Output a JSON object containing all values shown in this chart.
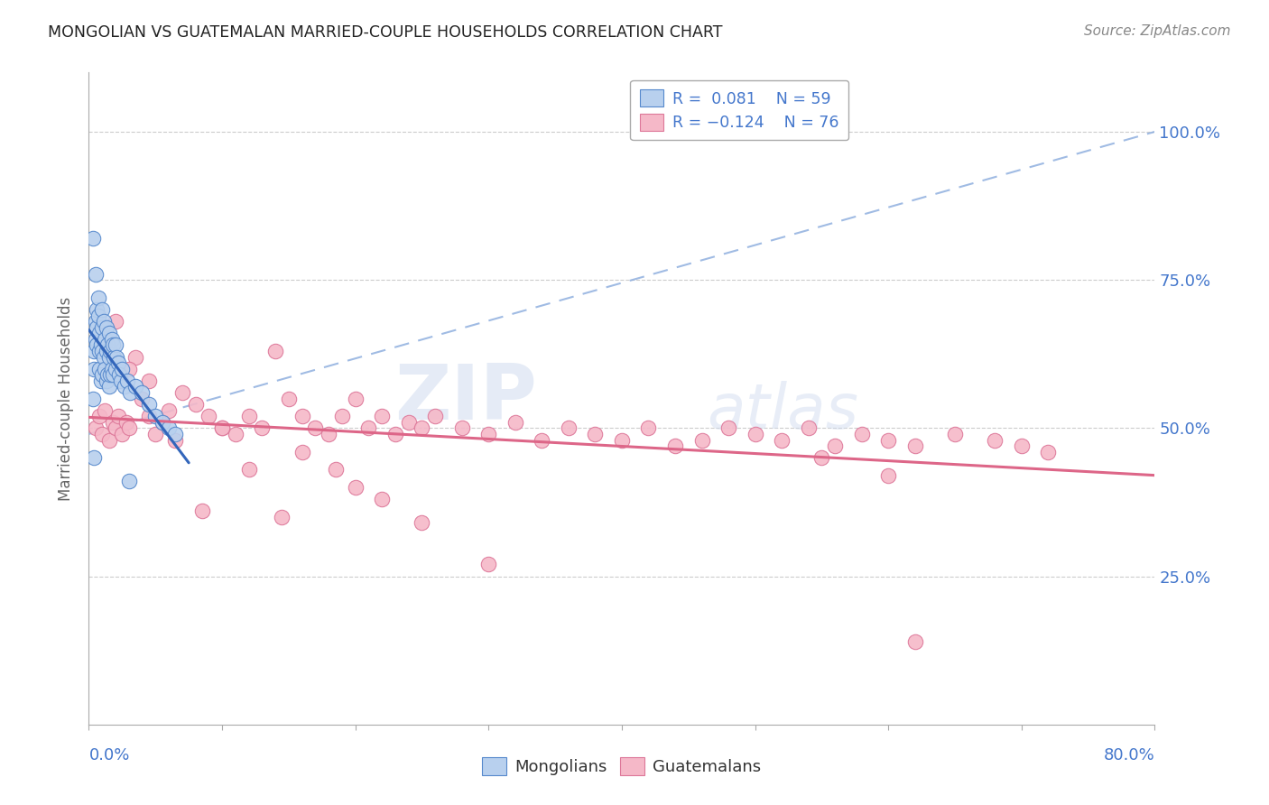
{
  "title": "MONGOLIAN VS GUATEMALAN MARRIED-COUPLE HOUSEHOLDS CORRELATION CHART",
  "source": "Source: ZipAtlas.com",
  "ylabel": "Married-couple Households",
  "xlim": [
    0.0,
    80.0
  ],
  "ylim": [
    0.0,
    110.0
  ],
  "mongolian_color": "#b8d0ee",
  "mongolian_edge_color": "#5588cc",
  "guatemalan_color": "#f5b8c8",
  "guatemalan_edge_color": "#dd7799",
  "mongolian_R": 0.081,
  "mongolian_N": 59,
  "guatemalan_R": -0.124,
  "guatemalan_N": 76,
  "regression_blue_color": "#3366bb",
  "regression_pink_color": "#dd6688",
  "diagonal_color": "#88aadd",
  "watermark_zip": "ZIP",
  "watermark_atlas": "atlas",
  "title_color": "#222222",
  "axis_label_color": "#4477cc",
  "legend_border_color": "#aaaaaa",
  "grid_color": "#cccccc",
  "bottom_spine_color": "#aaaaaa",
  "mongolian_x": [
    0.3,
    0.4,
    0.4,
    0.5,
    0.5,
    0.6,
    0.6,
    0.6,
    0.7,
    0.7,
    0.8,
    0.8,
    0.8,
    0.9,
    0.9,
    1.0,
    1.0,
    1.0,
    1.0,
    1.1,
    1.1,
    1.2,
    1.2,
    1.3,
    1.3,
    1.3,
    1.4,
    1.4,
    1.5,
    1.5,
    1.5,
    1.6,
    1.6,
    1.7,
    1.7,
    1.8,
    1.8,
    1.9,
    2.0,
    2.0,
    2.1,
    2.2,
    2.3,
    2.4,
    2.5,
    2.7,
    2.9,
    3.1,
    3.5,
    4.0,
    4.5,
    5.0,
    5.5,
    6.0,
    0.3,
    0.4,
    3.0,
    0.5,
    6.5
  ],
  "mongolian_y": [
    55,
    60,
    63,
    65,
    68,
    70,
    67,
    64,
    72,
    69,
    66,
    63,
    60,
    64,
    58,
    70,
    67,
    63,
    59,
    68,
    62,
    65,
    60,
    67,
    63,
    58,
    64,
    59,
    66,
    62,
    57,
    63,
    59,
    65,
    60,
    64,
    59,
    62,
    64,
    60,
    62,
    61,
    59,
    58,
    60,
    57,
    58,
    56,
    57,
    56,
    54,
    52,
    51,
    50,
    82,
    45,
    41,
    76,
    49
  ],
  "guatemalan_x": [
    0.5,
    0.8,
    1.0,
    1.2,
    1.5,
    1.8,
    2.0,
    2.2,
    2.5,
    2.8,
    3.0,
    3.5,
    4.0,
    4.5,
    5.0,
    5.5,
    6.0,
    7.0,
    8.0,
    9.0,
    10.0,
    11.0,
    12.0,
    13.0,
    14.0,
    15.0,
    16.0,
    17.0,
    18.0,
    19.0,
    20.0,
    21.0,
    22.0,
    23.0,
    24.0,
    25.0,
    26.0,
    28.0,
    30.0,
    32.0,
    34.0,
    36.0,
    38.0,
    40.0,
    42.0,
    44.0,
    46.0,
    48.0,
    50.0,
    52.0,
    54.0,
    56.0,
    58.0,
    60.0,
    62.0,
    65.0,
    68.0,
    70.0,
    72.0,
    2.0,
    3.0,
    4.5,
    6.5,
    8.5,
    10.0,
    12.0,
    14.5,
    16.0,
    18.5,
    20.0,
    22.0,
    25.0,
    30.0,
    55.0,
    60.0,
    62.0
  ],
  "guatemalan_y": [
    50,
    52,
    49,
    53,
    48,
    51,
    50,
    52,
    49,
    51,
    50,
    62,
    55,
    52,
    49,
    51,
    53,
    56,
    54,
    52,
    50,
    49,
    52,
    50,
    63,
    55,
    52,
    50,
    49,
    52,
    55,
    50,
    52,
    49,
    51,
    50,
    52,
    50,
    49,
    51,
    48,
    50,
    49,
    48,
    50,
    47,
    48,
    50,
    49,
    48,
    50,
    47,
    49,
    48,
    47,
    49,
    48,
    47,
    46,
    68,
    60,
    58,
    48,
    36,
    50,
    43,
    35,
    46,
    43,
    40,
    38,
    34,
    27,
    45,
    42,
    14
  ]
}
